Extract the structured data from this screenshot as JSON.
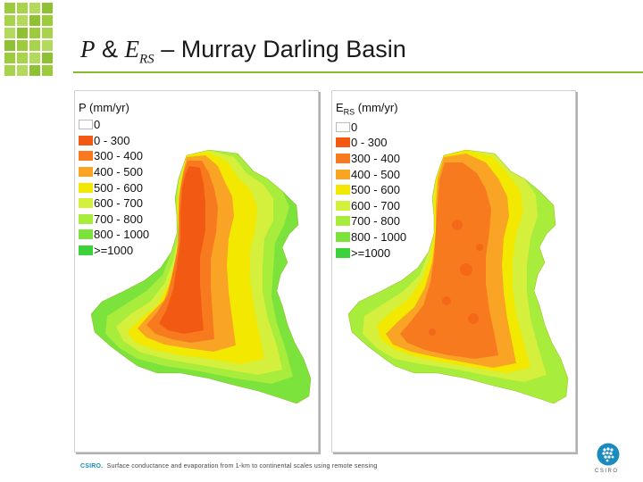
{
  "slide": {
    "title_p": "P",
    "title_amp": " & ",
    "title_e": "E",
    "title_sub": "RS",
    "title_rest": " – Murray Darling Basin"
  },
  "maps": [
    {
      "legend_title": "P (mm/yr)",
      "legend_title_sub": "",
      "legend_title_rest": "",
      "classes": [
        {
          "label": "0",
          "color": "#ffffff"
        },
        {
          "label": "0 - 300",
          "color": "#f25a14"
        },
        {
          "label": "300 - 400",
          "color": "#f77a1e"
        },
        {
          "label": "400 - 500",
          "color": "#f9a424"
        },
        {
          "label": "500 - 600",
          "color": "#f2e800"
        },
        {
          "label": "600 - 700",
          "color": "#d4f03c"
        },
        {
          "label": "700 - 800",
          "color": "#a8ec3c"
        },
        {
          "label": "800 - 1000",
          "color": "#7ce23c"
        },
        {
          "label": ">=1000",
          "color": "#3cd23c"
        }
      ]
    },
    {
      "legend_title": "E",
      "legend_title_sub": "RS",
      "legend_title_rest": " (mm/yr)",
      "classes": [
        {
          "label": "0",
          "color": "#ffffff"
        },
        {
          "label": "0 - 300",
          "color": "#f25a14"
        },
        {
          "label": "300 - 400",
          "color": "#f77a1e"
        },
        {
          "label": "400 - 500",
          "color": "#f9a424"
        },
        {
          "label": "500 - 600",
          "color": "#f2e800"
        },
        {
          "label": "600 - 700",
          "color": "#d4f03c"
        },
        {
          "label": "700 - 800",
          "color": "#a8ec3c"
        },
        {
          "label": "800 - 1000",
          "color": "#7ce23c"
        },
        {
          "label": ">=1000",
          "color": "#3cd23c"
        }
      ]
    }
  ],
  "footer": {
    "org": "CSIRO.",
    "text": "Surface conductance and evaporation from 1-km to continental scales using remote sensing"
  },
  "logo": {
    "text": "CSIRO"
  }
}
